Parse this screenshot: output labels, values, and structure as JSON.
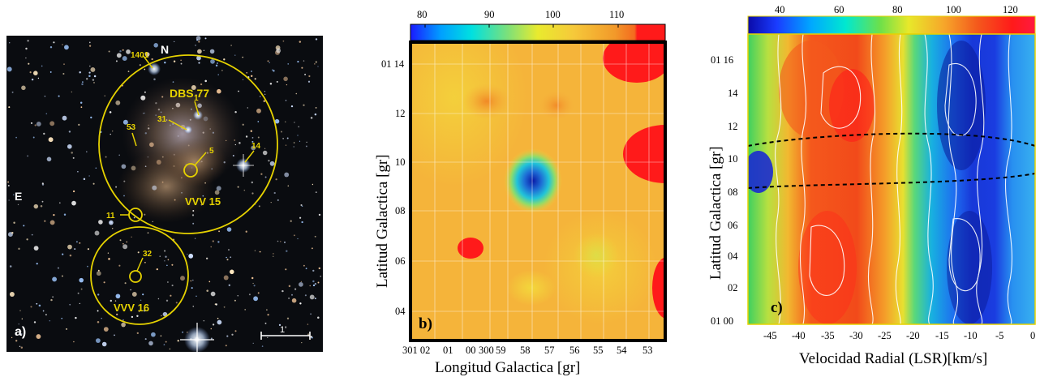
{
  "panel_a": {
    "panel_label": "a)",
    "north": "N",
    "east": "E",
    "scale_label": "1'",
    "labels": {
      "dbs77": "DBS 77",
      "vvv15": "VVV 15",
      "vvv16": "VVV 16",
      "s1401": "1401",
      "s1": "1",
      "s31": "31",
      "s53": "53",
      "s5": "5",
      "s14": "14",
      "s11": "11",
      "s32": "32"
    }
  },
  "panel_b": {
    "panel_label": "b)",
    "colorbar_ticks": [
      "80",
      "90",
      "100",
      "110"
    ],
    "y_ticks": [
      "01 14",
      "12",
      "10",
      "08",
      "06",
      "04"
    ],
    "x_ticks": [
      "301 02",
      "01",
      "00",
      "300",
      "59",
      "58",
      "57",
      "56",
      "55",
      "54",
      "53"
    ],
    "xlabel": "Longitud Galactica [gr]",
    "ylabel": "Latitud Galactica [gr]"
  },
  "panel_c": {
    "panel_label": "c)",
    "colorbar_ticks": [
      "40",
      "60",
      "80",
      "100",
      "120"
    ],
    "y_ticks": [
      "01 16",
      "14",
      "12",
      "10",
      "08",
      "06",
      "04",
      "02",
      "01 00"
    ],
    "x_ticks": [
      "-45",
      "-40",
      "-35",
      "-30",
      "-25",
      "-20",
      "-15",
      "-10",
      "-5",
      "0"
    ],
    "xlabel": "Velocidad Radial (LSR)[km/s]",
    "ylabel": "Latitud Galactica [gr]"
  }
}
